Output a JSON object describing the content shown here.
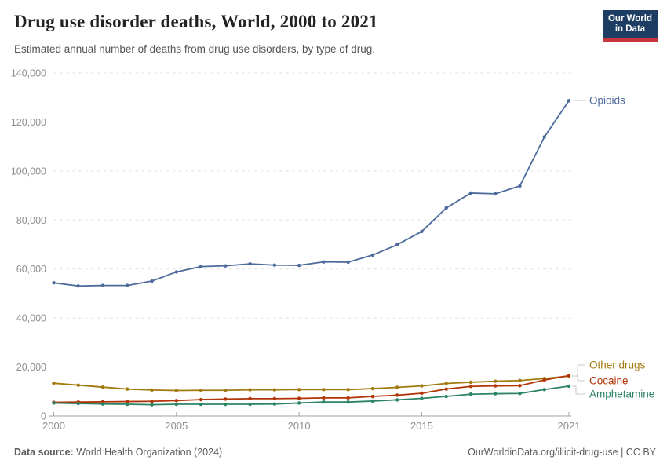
{
  "header": {
    "title": "Drug use disorder deaths, World, 2000 to 2021",
    "subtitle": "Estimated annual number of deaths from drug use disorders, by type of drug.",
    "logo": {
      "line1": "Our World",
      "line2": "in Data",
      "bg": "#1d3d63",
      "accent": "#c9353d"
    }
  },
  "footer": {
    "source_label": "Data source:",
    "source_value": "World Health Organization (2024)",
    "rights": "OurWorldinData.org/illicit-drug-use | CC BY"
  },
  "chart_data": {
    "type": "line",
    "title": "Drug use disorder deaths, World, 2000 to 2021",
    "subtitle": "Estimated annual number of deaths from drug use disorders, by type of drug.",
    "xlabel": "",
    "ylabel": "",
    "grid": true,
    "legend_position": "right-end-labels",
    "xlim": [
      2000,
      2021
    ],
    "ylim": [
      0,
      140000
    ],
    "xticks": [
      2000,
      2005,
      2010,
      2015,
      2021
    ],
    "yticks": [
      0,
      20000,
      40000,
      60000,
      80000,
      100000,
      120000,
      140000
    ],
    "x": [
      2000,
      2001,
      2002,
      2003,
      2004,
      2005,
      2006,
      2007,
      2008,
      2009,
      2010,
      2011,
      2012,
      2013,
      2014,
      2015,
      2016,
      2017,
      2018,
      2019,
      2020,
      2021
    ],
    "series": [
      {
        "name": "Opioids",
        "color": "#4c6a9c",
        "values": [
          54400,
          53100,
          53300,
          53300,
          55100,
          58800,
          61000,
          61300,
          62100,
          61600,
          61500,
          62900,
          62800,
          65700,
          69900,
          75300,
          84900,
          91000,
          90700,
          93900,
          113900,
          128700
        ]
      },
      {
        "name": "Other drugs",
        "color": "#a2790d",
        "values": [
          13400,
          12600,
          11800,
          11000,
          10600,
          10400,
          10500,
          10500,
          10700,
          10700,
          10800,
          10800,
          10800,
          11200,
          11700,
          12300,
          13300,
          13800,
          14200,
          14500,
          15300,
          16300
        ]
      },
      {
        "name": "Cocaine",
        "color": "#b13507",
        "values": [
          5600,
          5700,
          5800,
          5900,
          6000,
          6300,
          6700,
          6900,
          7100,
          7100,
          7200,
          7400,
          7400,
          8000,
          8500,
          9300,
          11000,
          12100,
          12300,
          12400,
          14700,
          16500
        ]
      },
      {
        "name": "Amphetamine",
        "color": "#2c8465",
        "values": [
          5300,
          5100,
          4900,
          4800,
          4600,
          4800,
          4800,
          4800,
          4800,
          4900,
          5300,
          5700,
          5700,
          6100,
          6600,
          7200,
          8000,
          8900,
          9100,
          9200,
          10800,
          12200
        ]
      }
    ],
    "axis_colors": {
      "grid": "#dedede",
      "axis": "#a3a3a3",
      "tick_text": "#8f8f8f",
      "connector": "#c8c8c8"
    }
  }
}
